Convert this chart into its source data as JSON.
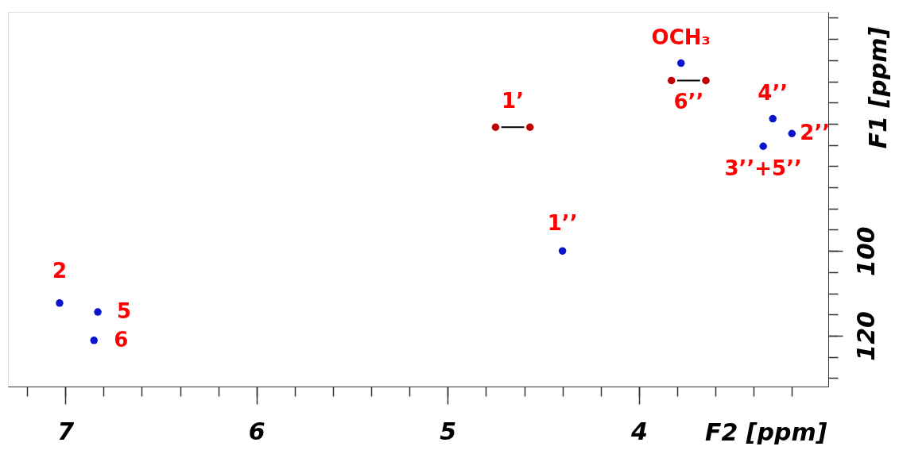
{
  "chart_data": {
    "type": "scatter",
    "xlabel": "F2 [ppm]",
    "ylabel": "F1 [ppm]",
    "xlim": [
      7.3,
      3.01
    ],
    "ylim": [
      132,
      43.6
    ],
    "xticks": [
      {
        "value": 7.2,
        "label": null
      },
      7,
      {
        "value": 6.8,
        "label": null
      },
      {
        "value": 6.6,
        "label": null
      },
      {
        "value": 6.4,
        "label": null
      },
      {
        "value": 6.2,
        "label": null
      },
      6,
      {
        "value": 5.8,
        "label": null
      },
      {
        "value": 5.6,
        "label": null
      },
      {
        "value": 5.4,
        "label": null
      },
      {
        "value": 5.2,
        "label": null
      },
      5,
      {
        "value": 4.8,
        "label": null
      },
      {
        "value": 4.6,
        "label": null
      },
      {
        "value": 4.4,
        "label": null
      },
      {
        "value": 4.2,
        "label": null
      },
      4,
      {
        "value": 3.8,
        "label": null
      },
      {
        "value": 3.6,
        "label": null
      },
      {
        "value": 3.4,
        "label": null
      },
      {
        "value": 3.2,
        "label": null
      }
    ],
    "yticks": [
      {
        "value": 45,
        "label": null
      },
      {
        "value": 50,
        "label": null
      },
      {
        "value": 55,
        "label": null
      },
      {
        "value": 60,
        "label": null
      },
      {
        "value": 65,
        "label": null
      },
      {
        "value": 70,
        "label": null
      },
      {
        "value": 75,
        "label": null
      },
      {
        "value": 80,
        "label": null
      },
      {
        "value": 85,
        "label": null
      },
      {
        "value": 90,
        "label": null
      },
      {
        "value": 95,
        "label": null
      },
      100,
      {
        "value": 105,
        "label": null
      },
      {
        "value": 110,
        "label": null
      },
      {
        "value": 115,
        "label": null
      },
      120,
      {
        "value": 125,
        "label": null
      },
      {
        "value": 130,
        "label": null
      }
    ],
    "grid": false,
    "marker": "circle",
    "series": [
      {
        "color": "#0a14c8",
        "x": [
          7.03,
          6.83,
          6.85,
          4.4,
          3.78,
          3.3,
          3.2,
          3.35
        ],
        "values": [
          112.3,
          114.4,
          121.1,
          100.0,
          55.7,
          68.8,
          72.3,
          75.3
        ]
      },
      {
        "color": "#c00000",
        "x": [
          4.75,
          4.57,
          3.83,
          3.65
        ],
        "values": [
          70.8,
          70.8,
          59.8,
          59.8
        ]
      },
      {
        "type": "line",
        "marker": "none",
        "color": "#000000",
        "x": [
          4.72,
          4.6
        ],
        "values": [
          70.8,
          70.8
        ]
      },
      {
        "type": "line",
        "marker": "none",
        "color": "#000000",
        "x": [
          3.8,
          3.68
        ],
        "values": [
          59.8,
          59.8
        ]
      }
    ],
    "annotations": [
      {
        "text": "2",
        "x": 7.03,
        "y": 112.3
      },
      {
        "text": "5",
        "x": 6.83,
        "y": 114.4
      },
      {
        "text": "6",
        "x": 6.85,
        "y": 121.1
      },
      {
        "text": "1’’",
        "x": 4.4,
        "y": 100.0
      },
      {
        "text": "1’",
        "x": 4.66,
        "y": 70.8
      },
      {
        "text": "OCH₃",
        "x": 3.78,
        "y": 55.7
      },
      {
        "text": "6’’",
        "x": 3.74,
        "y": 59.8
      },
      {
        "text": "4’’",
        "x": 3.3,
        "y": 68.8
      },
      {
        "text": "2’’",
        "x": 3.2,
        "y": 72.3
      },
      {
        "text": "3’’+5’’",
        "x": 3.35,
        "y": 75.3
      }
    ]
  }
}
